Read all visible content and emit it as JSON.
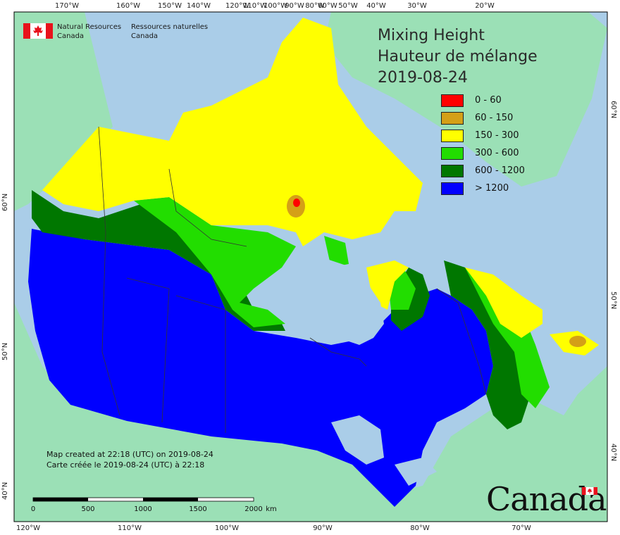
{
  "title": {
    "line1": "Mixing Height",
    "line2": "Hauteur de mélange",
    "date": "2019-08-24"
  },
  "agency": {
    "en_line1": "Natural Resources",
    "en_line2": "Canada",
    "fr_line1": "Ressources naturelles",
    "fr_line2": "Canada",
    "flag_icon": "canada-flag-icon"
  },
  "legend": [
    {
      "label": "0 - 60",
      "color": "#ff0000"
    },
    {
      "label": "60 - 150",
      "color": "#d4a017"
    },
    {
      "label": "150 - 300",
      "color": "#ffff00"
    },
    {
      "label": "300 - 600",
      "color": "#22dd00"
    },
    {
      "label": "600 - 1200",
      "color": "#007700"
    },
    {
      "label": "> 1200",
      "color": "#0000ff"
    }
  ],
  "credit": {
    "en": "Map created at 22:18 (UTC) on 2019-08-24",
    "fr": "Carte créée le 2019-08-24 (UTC) à 22:18"
  },
  "scale_bar": {
    "ticks": [
      "0",
      "500",
      "1000",
      "1500",
      "2000"
    ],
    "unit": "km"
  },
  "graticule": {
    "top": [
      "170°W",
      "160°W",
      "150°W",
      "140°W",
      "120°W",
      "110°W",
      "100°W",
      "90°W",
      "80°W",
      "60°W",
      "50°W",
      "40°W",
      "30°W",
      "20°W"
    ],
    "bottom": [
      "120°W",
      "110°W",
      "100°W",
      "90°W",
      "80°W",
      "70°W"
    ],
    "left": [
      "60°N",
      "50°N",
      "40°N"
    ],
    "right": [
      "60°N",
      "50°N",
      "40°N"
    ]
  },
  "wordmark": "Canada",
  "colors": {
    "ocean": "#aacde8",
    "land": "#9be0b6",
    "lake": "#aacde8"
  }
}
